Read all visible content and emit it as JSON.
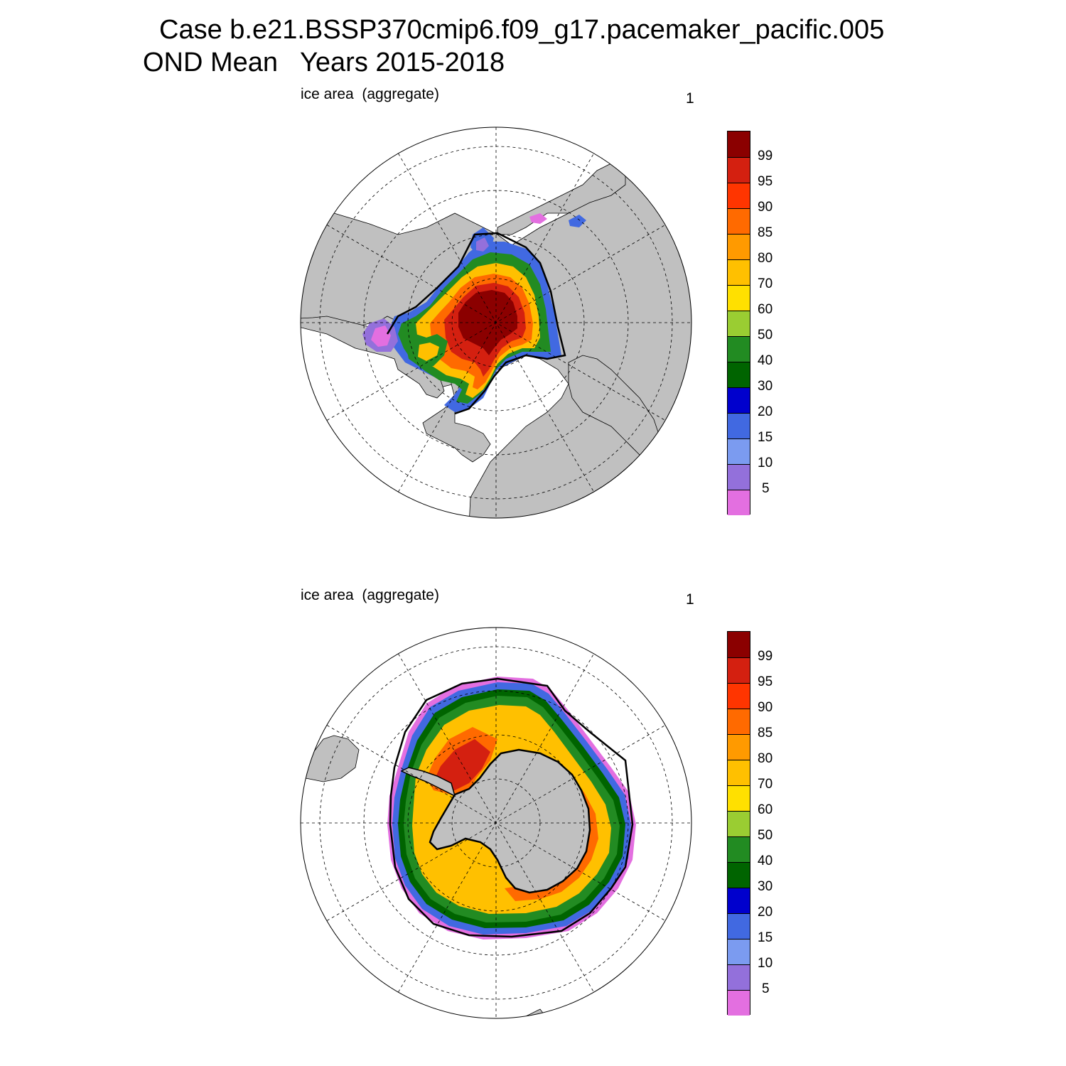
{
  "title": {
    "line1": "Case b.e21.BSSP370cmip6.f09_g17.pacemaker_pacific.005",
    "line2": "OND Mean   Years 2015-2018"
  },
  "panels": [
    {
      "label": "ice area  (aggregate)",
      "index": "1",
      "hemisphere": "north"
    },
    {
      "label": "ice area  (aggregate)",
      "index": "1",
      "hemisphere": "south"
    }
  ],
  "colorbar": {
    "colors": [
      "#e36fe0",
      "#9370db",
      "#7b9bf0",
      "#4169e1",
      "#0000cd",
      "#006400",
      "#228b22",
      "#9acd32",
      "#ffe000",
      "#ffc000",
      "#ff9a00",
      "#ff6a00",
      "#ff3500",
      "#d42010",
      "#8b0000"
    ],
    "labels": [
      "5",
      "10",
      "15",
      "20",
      "30",
      "40",
      "50",
      "60",
      "70",
      "80",
      "85",
      "90",
      "95",
      "99"
    ]
  },
  "colors": {
    "land": "#c0c0c0",
    "coast": "#000000"
  }
}
